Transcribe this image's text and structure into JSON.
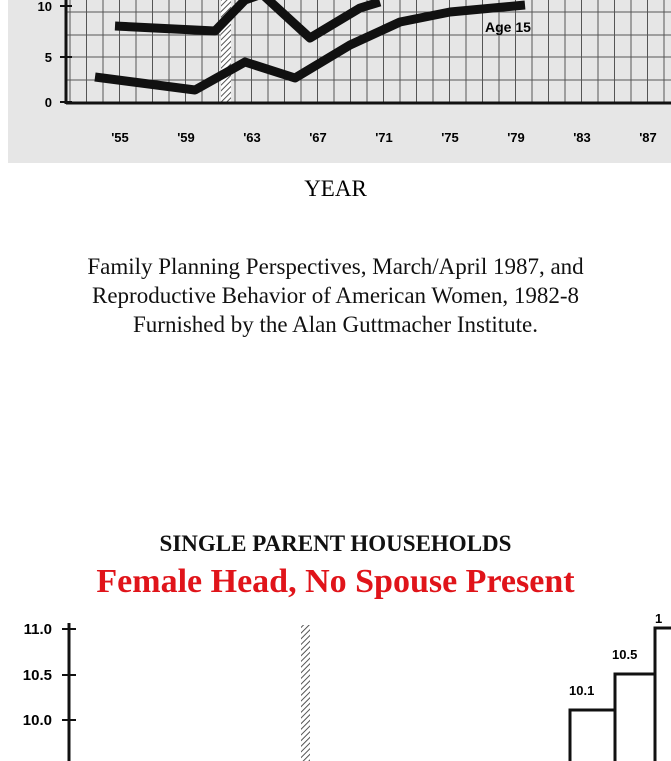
{
  "top_chart": {
    "yticks": [
      "10",
      "5",
      "0"
    ],
    "xticks": [
      "'55",
      "'59",
      "'63",
      "'67",
      "'71",
      "'75",
      "'79",
      "'83",
      "'87"
    ],
    "annotation": "Age 15"
  },
  "x_axis_label": "YEAR",
  "source": [
    "Family Planning Perspectives, March/April 1987, and",
    "Reproductive Behavior of American Women, 1982-8",
    "Furnished by the Alan Guttmacher Institute."
  ],
  "bottom_chart": {
    "title": "SINGLE PARENT HOUSEHOLDS",
    "subtitle": "Female Head, No Spouse Present",
    "yticks": [
      "11.0",
      "10.5",
      "10.0"
    ],
    "value_labels": [
      "10.1",
      "10.5",
      "1"
    ]
  }
}
